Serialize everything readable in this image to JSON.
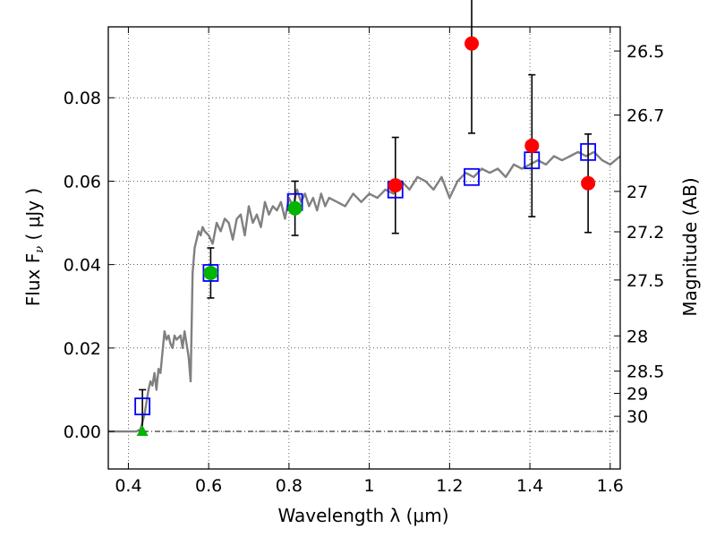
{
  "chart_data": {
    "type": "scatter",
    "xlabel": "Wavelength  λ (μm)",
    "ylabel": "Flux  F",
    "ylabel_sub": "ν",
    "ylabel_unit": "  ( μJy )",
    "y2label": "Magnitude (AB)",
    "xlim": [
      0.35,
      1.625
    ],
    "ylim": [
      -0.009,
      0.097
    ],
    "x_ticks": [
      0.4,
      0.6,
      0.8,
      1.0,
      1.2,
      1.4,
      1.6
    ],
    "x_tick_labels": [
      "0.4",
      "0.6",
      "0.8",
      "1",
      "1.2",
      "1.4",
      "1.6"
    ],
    "y_ticks": [
      0.0,
      0.02,
      0.04,
      0.06,
      0.08
    ],
    "y_tick_labels": [
      "0.00",
      "0.02",
      "0.04",
      "0.06",
      "0.08"
    ],
    "y2_ticks": [
      26.5,
      26.7,
      27,
      27.2,
      27.5,
      28,
      28.5,
      29,
      30
    ],
    "y2_tick_labels": [
      "26.5",
      "26.7",
      "27",
      "27.2",
      "27.5",
      "28",
      "28.5",
      "29",
      "30"
    ],
    "grid": true,
    "zero_line": true,
    "colors": {
      "model": "#808080",
      "model_points": "#0000ff",
      "detection": "#00b400",
      "upper_limit": "#00b400",
      "low_sn": "#ff0000",
      "errorbar": "#000000"
    },
    "series": [
      {
        "role": "model_spectrum",
        "style": "line",
        "x": [
          0.35,
          0.38,
          0.4,
          0.42,
          0.43,
          0.44,
          0.45,
          0.455,
          0.46,
          0.465,
          0.47,
          0.475,
          0.48,
          0.49,
          0.495,
          0.5,
          0.505,
          0.51,
          0.515,
          0.52,
          0.53,
          0.535,
          0.54,
          0.55,
          0.555,
          0.56,
          0.565,
          0.57,
          0.575,
          0.58,
          0.585,
          0.59,
          0.6,
          0.61,
          0.62,
          0.63,
          0.64,
          0.65,
          0.66,
          0.67,
          0.68,
          0.69,
          0.7,
          0.71,
          0.72,
          0.73,
          0.74,
          0.75,
          0.76,
          0.77,
          0.78,
          0.79,
          0.8,
          0.81,
          0.82,
          0.83,
          0.84,
          0.85,
          0.86,
          0.87,
          0.88,
          0.89,
          0.9,
          0.92,
          0.94,
          0.96,
          0.98,
          1.0,
          1.02,
          1.04,
          1.06,
          1.08,
          1.1,
          1.12,
          1.14,
          1.16,
          1.18,
          1.2,
          1.22,
          1.24,
          1.26,
          1.28,
          1.3,
          1.32,
          1.34,
          1.36,
          1.38,
          1.4,
          1.42,
          1.44,
          1.46,
          1.48,
          1.5,
          1.52,
          1.54,
          1.56,
          1.58,
          1.6,
          1.625
        ],
        "y": [
          0.0,
          0.0,
          0.0,
          0.0,
          0.0005,
          0.004,
          0.01,
          0.012,
          0.011,
          0.014,
          0.01,
          0.015,
          0.014,
          0.024,
          0.022,
          0.023,
          0.021,
          0.02,
          0.023,
          0.022,
          0.023,
          0.02,
          0.024,
          0.018,
          0.012,
          0.038,
          0.044,
          0.046,
          0.048,
          0.047,
          0.049,
          0.048,
          0.047,
          0.045,
          0.05,
          0.048,
          0.051,
          0.05,
          0.046,
          0.051,
          0.052,
          0.047,
          0.054,
          0.05,
          0.052,
          0.049,
          0.055,
          0.052,
          0.054,
          0.053,
          0.055,
          0.051,
          0.056,
          0.054,
          0.058,
          0.055,
          0.057,
          0.054,
          0.056,
          0.053,
          0.057,
          0.054,
          0.056,
          0.055,
          0.054,
          0.057,
          0.055,
          0.057,
          0.056,
          0.058,
          0.057,
          0.06,
          0.058,
          0.061,
          0.06,
          0.058,
          0.061,
          0.056,
          0.06,
          0.062,
          0.061,
          0.063,
          0.062,
          0.063,
          0.061,
          0.064,
          0.063,
          0.064,
          0.065,
          0.064,
          0.066,
          0.065,
          0.066,
          0.067,
          0.066,
          0.067,
          0.065,
          0.064,
          0.066
        ]
      },
      {
        "role": "model_photometry",
        "marker": "open-square",
        "x": [
          0.435,
          0.605,
          0.815,
          1.065,
          1.255,
          1.405,
          1.545
        ],
        "y": [
          0.006,
          0.038,
          0.055,
          0.058,
          0.061,
          0.065,
          0.067
        ]
      },
      {
        "role": "detections",
        "marker": "circle",
        "color": "#00b400",
        "x": [
          0.605,
          0.815
        ],
        "y": [
          0.038,
          0.0535
        ],
        "yerr": [
          0.006,
          0.0065
        ]
      },
      {
        "role": "upper_limit",
        "marker": "triangle",
        "color": "#00b400",
        "x": [
          0.435
        ],
        "y": [
          0.0
        ],
        "yerr_upper": [
          0.01
        ]
      },
      {
        "role": "low_significance",
        "marker": "circle",
        "color": "#ff0000",
        "x": [
          1.065,
          1.255,
          1.405,
          1.545
        ],
        "y": [
          0.059,
          0.093,
          0.0685,
          0.0595
        ],
        "yerr": [
          0.0115,
          0.0215,
          0.017,
          0.0118
        ]
      }
    ]
  }
}
